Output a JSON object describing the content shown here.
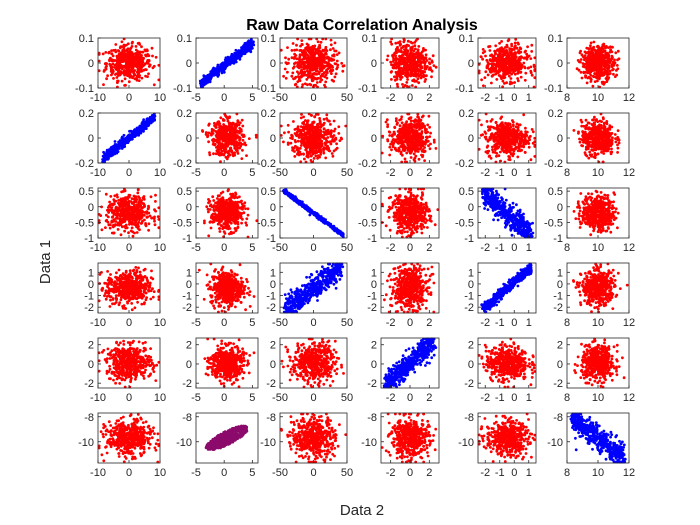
{
  "chart_data": {
    "type": "scatter",
    "title": "Raw Data Correlation Analysis",
    "xlabel": "Data 2",
    "ylabel": "Data 1",
    "grid": false,
    "colors": {
      "positive": "#0000ff",
      "negative": "#0000ff",
      "none": "#ff0000",
      "mixed": "#8b0a6b"
    },
    "x_axes": [
      {
        "lim": [
          -10,
          10
        ],
        "ticks": [
          -10,
          0,
          10
        ],
        "tick_labels": [
          "-10",
          "0",
          "10"
        ]
      },
      {
        "lim": [
          -5,
          6
        ],
        "ticks": [
          -5,
          0,
          5
        ],
        "tick_labels": [
          "-5",
          "0",
          "5"
        ]
      },
      {
        "lim": [
          -50,
          50
        ],
        "ticks": [
          -50,
          0,
          50
        ],
        "tick_labels": [
          "-50",
          "0",
          "50"
        ]
      },
      {
        "lim": [
          -3,
          3
        ],
        "ticks": [
          -2,
          0,
          2
        ],
        "tick_labels": [
          "-2",
          "0",
          "2"
        ]
      },
      {
        "lim": [
          -2.5,
          1.5
        ],
        "ticks": [
          -2,
          -1,
          0,
          1
        ],
        "tick_labels": [
          "-2",
          "-1",
          "0",
          "1"
        ]
      },
      {
        "lim": [
          8,
          12
        ],
        "ticks": [
          8,
          10,
          12
        ],
        "tick_labels": [
          "8",
          "10",
          "12"
        ]
      }
    ],
    "y_axes": [
      {
        "lim": [
          -0.1,
          0.1
        ],
        "ticks": [
          -0.1,
          0,
          0.1
        ],
        "tick_labels": [
          "-0.1",
          "0",
          "0.1"
        ]
      },
      {
        "lim": [
          -0.2,
          0.2
        ],
        "ticks": [
          -0.2,
          0,
          0.2
        ],
        "tick_labels": [
          "-0.2",
          "0",
          "0.2"
        ]
      },
      {
        "lim": [
          -1,
          0.6
        ],
        "ticks": [
          -1,
          -0.5,
          0,
          0.5
        ],
        "tick_labels": [
          "-1",
          "-0.5",
          "0",
          "0.5"
        ]
      },
      {
        "lim": [
          -2.5,
          1.8
        ],
        "ticks": [
          -2,
          -1,
          0,
          1
        ],
        "tick_labels": [
          "-2",
          "-1",
          "0",
          "1"
        ]
      },
      {
        "lim": [
          -2.5,
          2.7
        ],
        "ticks": [
          -2,
          0,
          2
        ],
        "tick_labels": [
          "-2",
          "0",
          "2"
        ]
      },
      {
        "lim": [
          -11.7,
          -7.7
        ],
        "ticks": [
          -10,
          -8
        ],
        "tick_labels": [
          "-10",
          "-8"
        ]
      }
    ],
    "panels": [
      [
        {
          "row": 0,
          "col": 0,
          "relation": "none"
        },
        {
          "row": 0,
          "col": 1,
          "relation": "positive"
        },
        {
          "row": 0,
          "col": 2,
          "relation": "none"
        },
        {
          "row": 0,
          "col": 3,
          "relation": "none"
        },
        {
          "row": 0,
          "col": 4,
          "relation": "none"
        },
        {
          "row": 0,
          "col": 5,
          "relation": "none"
        }
      ],
      [
        {
          "row": 1,
          "col": 0,
          "relation": "positive"
        },
        {
          "row": 1,
          "col": 1,
          "relation": "none"
        },
        {
          "row": 1,
          "col": 2,
          "relation": "none"
        },
        {
          "row": 1,
          "col": 3,
          "relation": "none"
        },
        {
          "row": 1,
          "col": 4,
          "relation": "none"
        },
        {
          "row": 1,
          "col": 5,
          "relation": "none"
        }
      ],
      [
        {
          "row": 2,
          "col": 0,
          "relation": "none"
        },
        {
          "row": 2,
          "col": 1,
          "relation": "none"
        },
        {
          "row": 2,
          "col": 2,
          "relation": "negative"
        },
        {
          "row": 2,
          "col": 3,
          "relation": "none"
        },
        {
          "row": 2,
          "col": 4,
          "relation": "negative"
        },
        {
          "row": 2,
          "col": 5,
          "relation": "none"
        }
      ],
      [
        {
          "row": 3,
          "col": 0,
          "relation": "none"
        },
        {
          "row": 3,
          "col": 1,
          "relation": "none"
        },
        {
          "row": 3,
          "col": 2,
          "relation": "positive"
        },
        {
          "row": 3,
          "col": 3,
          "relation": "none"
        },
        {
          "row": 3,
          "col": 4,
          "relation": "positive"
        },
        {
          "row": 3,
          "col": 5,
          "relation": "none"
        }
      ],
      [
        {
          "row": 4,
          "col": 0,
          "relation": "none"
        },
        {
          "row": 4,
          "col": 1,
          "relation": "none"
        },
        {
          "row": 4,
          "col": 2,
          "relation": "none"
        },
        {
          "row": 4,
          "col": 3,
          "relation": "positive"
        },
        {
          "row": 4,
          "col": 4,
          "relation": "none"
        },
        {
          "row": 4,
          "col": 5,
          "relation": "none"
        }
      ],
      [
        {
          "row": 5,
          "col": 0,
          "relation": "none"
        },
        {
          "row": 5,
          "col": 1,
          "relation": "mixed"
        },
        {
          "row": 5,
          "col": 2,
          "relation": "none"
        },
        {
          "row": 5,
          "col": 3,
          "relation": "none"
        },
        {
          "row": 5,
          "col": 4,
          "relation": "none"
        },
        {
          "row": 5,
          "col": 5,
          "relation": "negative"
        }
      ]
    ]
  }
}
